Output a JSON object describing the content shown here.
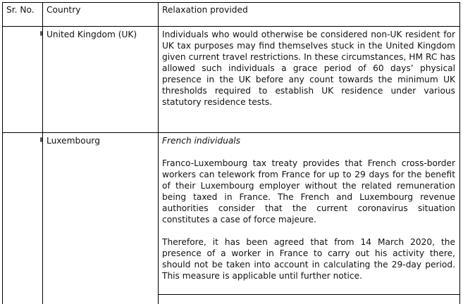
{
  "table": {
    "headers": {
      "sr_no": "Sr. No.",
      "country": "Country",
      "relaxation": "Relaxation provided"
    },
    "rows": [
      {
        "sr_no": "",
        "country": "United Kingdom (UK)",
        "paragraphs": [
          "Individuals who would otherwise be considered non-UK resident for UK tax purposes may find themselves stuck in the United Kingdom given current travel restrictions. In these circumstances, HM RC has allowed such individuals a grace period of 60 days’ physical presence in the UK before any count towards the minimum UK thresholds required to establish UK residence under various statutory residence tests."
        ]
      },
      {
        "sr_no": "",
        "country": "Luxembourg",
        "subheading": "French individuals",
        "paragraphs": [
          "Franco-Luxembourg tax treaty provides that French cross-border workers can telework from France for up to 29 days for the benefit of their Luxembourg employer without the related remuneration being taxed in France. The French and Luxembourg revenue authorities consider that the current coronavirus situation constitutes a case of force majeure.",
          "Therefore, it has been agreed that from 14 March 2020, the presence of a worker in France to carry out his activity there, should not be taken into account in calculating the 29-day period. This measure is applicable until further notice."
        ]
      }
    ]
  }
}
